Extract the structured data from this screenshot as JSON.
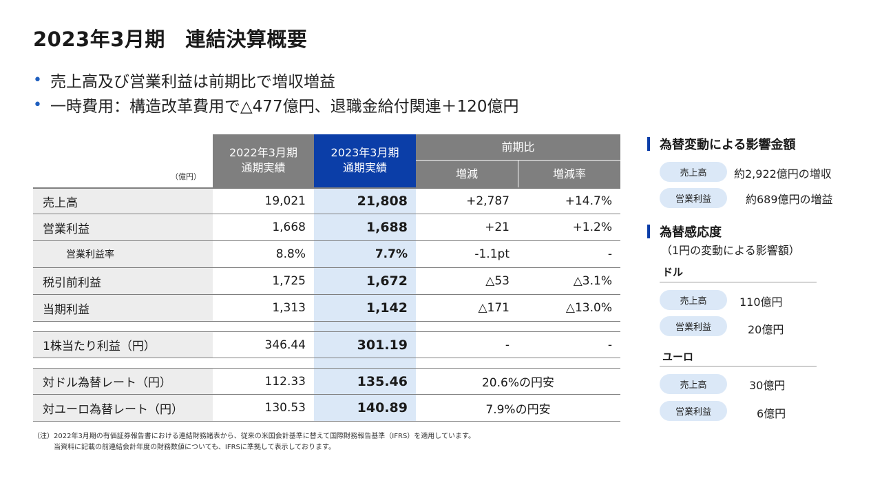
{
  "title": "2023年3月期　連結決算概要",
  "bullets": [
    "売上高及び営業利益は前期比で増収増益",
    "一時費用：構造改革費用で△477億円、退職金給付関連＋120億円"
  ],
  "table": {
    "unit": "（億円）",
    "col_2022": [
      "2022年3月期",
      "通期実績"
    ],
    "col_2023": [
      "2023年3月期",
      "通期実績"
    ],
    "col_prev": "前期比",
    "col_inc": "増減",
    "col_rate": "増減率",
    "rows": [
      {
        "label": "売上高",
        "v2022": "19,021",
        "v2023": "21,808",
        "inc": "+2,787",
        "rate": "+14.7%"
      },
      {
        "label": "営業利益",
        "v2022": "1,668",
        "v2023": "1,688",
        "inc": "+21",
        "rate": "+1.2%"
      },
      {
        "label": "営業利益率",
        "v2022": "8.8%",
        "v2023": "7.7%",
        "inc": "-1.1pt",
        "rate": "-"
      },
      {
        "label": "税引前利益",
        "v2022": "1,725",
        "v2023": "1,672",
        "inc": "△53",
        "rate": "△3.1%"
      },
      {
        "label": "当期利益",
        "v2022": "1,313",
        "v2023": "1,142",
        "inc": "△171",
        "rate": "△13.0%"
      }
    ],
    "eps": {
      "label": "1株当たり利益（円）",
      "v2022": "346.44",
      "v2023": "301.19",
      "inc": "-",
      "rate": "-"
    },
    "fx": [
      {
        "label": "対ドル為替レート（円）",
        "v2022": "112.33",
        "v2023": "135.46",
        "note": "20.6%の円安"
      },
      {
        "label": "対ユーロ為替レート（円）",
        "v2022": "130.53",
        "v2023": "140.89",
        "note": "7.9%の円安"
      }
    ]
  },
  "notes": [
    "（注）2022年3月期の有価証券報告書における連結財務諸表から、従来の米国会計基準に替えて国際財務報告基準（IFRS）を適用しています。",
    "当資料に記載の前連結会計年度の財務数値についても、IFRSに準拠して表示しております。"
  ],
  "fx_impact": {
    "title": "為替変動による影響金額",
    "items": [
      {
        "label": "売上高",
        "value": "約2,922億円の増収"
      },
      {
        "label": "営業利益",
        "value": "約689億円の増益"
      }
    ]
  },
  "sensitivity": {
    "title": "為替感応度",
    "subtitle": "（1円の変動による影響額）",
    "groups": [
      {
        "currency": "ドル",
        "items": [
          {
            "label": "売上高",
            "value": "110億円"
          },
          {
            "label": "営業利益",
            "value": "20億円"
          }
        ]
      },
      {
        "currency": "ユーロ",
        "items": [
          {
            "label": "売上高",
            "value": "30億円"
          },
          {
            "label": "営業利益",
            "value": "6億円"
          }
        ]
      }
    ]
  },
  "colors": {
    "accent_blue": "#0b3ea8",
    "light_blue": "#dbe8f7",
    "header_gray": "#7f7f7f",
    "label_gray": "#ededed"
  }
}
